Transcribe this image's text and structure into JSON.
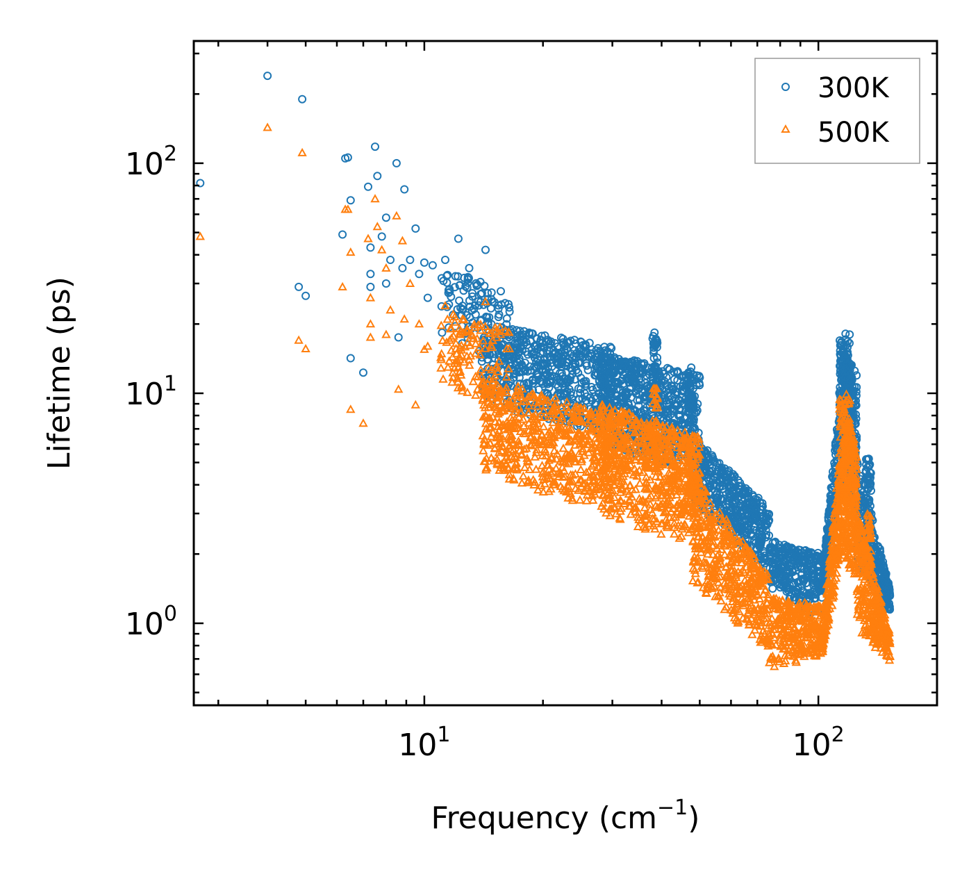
{
  "chart_data": {
    "type": "scatter",
    "title": "",
    "xlabel": "Frequency (cm",
    "xlabel_sup": "−1",
    "xlabel_end": ")",
    "ylabel": "Lifetime (ps)",
    "xscale": "log",
    "yscale": "log",
    "xlim": [
      2.6,
      200
    ],
    "ylim": [
      0.44,
      340
    ],
    "grid": false,
    "legend_position": "top-right",
    "x_ticks": [
      {
        "value": 10,
        "base": "10",
        "exp": "1"
      },
      {
        "value": 100,
        "base": "10",
        "exp": "2"
      }
    ],
    "y_ticks": [
      {
        "value": 1,
        "base": "10",
        "exp": "0"
      },
      {
        "value": 10,
        "base": "10",
        "exp": "1"
      },
      {
        "value": 100,
        "base": "10",
        "exp": "2"
      }
    ],
    "series": [
      {
        "name": "300K",
        "marker": "circle",
        "color": "#1f77b4",
        "points": [
          [
            2.7,
            82
          ],
          [
            4.0,
            240
          ],
          [
            4.8,
            29
          ],
          [
            4.9,
            190
          ],
          [
            5.0,
            26.5
          ],
          [
            6.2,
            49
          ],
          [
            6.3,
            105
          ],
          [
            6.4,
            106
          ],
          [
            6.5,
            69
          ],
          [
            6.5,
            14.2
          ],
          [
            7.0,
            12.3
          ],
          [
            7.2,
            79
          ],
          [
            7.3,
            43
          ],
          [
            7.3,
            33
          ],
          [
            7.3,
            29
          ],
          [
            7.5,
            118
          ],
          [
            7.6,
            88
          ],
          [
            7.8,
            48
          ],
          [
            8.0,
            58
          ],
          [
            8.0,
            30
          ],
          [
            8.2,
            38
          ],
          [
            8.5,
            100
          ],
          [
            8.6,
            17.5
          ],
          [
            8.8,
            35
          ],
          [
            8.9,
            77
          ],
          [
            9.2,
            38
          ],
          [
            9.5,
            52
          ],
          [
            9.7,
            33
          ],
          [
            10.0,
            37
          ],
          [
            10.2,
            26
          ],
          [
            10.5,
            36
          ],
          [
            11.3,
            38
          ],
          [
            12.2,
            47
          ],
          [
            12.5,
            24
          ],
          [
            13.0,
            35
          ],
          [
            13.5,
            22
          ],
          [
            14.3,
            42
          ],
          [
            14.5,
            19
          ],
          [
            15.0,
            16
          ]
        ],
        "dense_clusters": [
          {
            "x_range": [
              11.0,
              16.5
            ],
            "y_start": [
              36,
              18
            ],
            "y_end": [
              28,
              13
            ],
            "count": 120
          },
          {
            "x_range": [
              14.0,
              30.0
            ],
            "y_start": [
              20,
              9
            ],
            "y_end": [
              16,
              6.5
            ],
            "count": 600
          },
          {
            "x_range": [
              28.0,
              50.0
            ],
            "y_start": [
              15,
              6
            ],
            "y_end": [
              12,
              4.5
            ],
            "count": 650
          },
          {
            "x_range": [
              48.0,
              75.0
            ],
            "y_start": [
              6.5,
              3.2
            ],
            "y_end": [
              3.2,
              1.7
            ],
            "count": 450
          },
          {
            "x_range": [
              75.0,
              102.0
            ],
            "y_start": [
              2.3,
              1.4
            ],
            "y_end": [
              2.0,
              1.05
            ],
            "count": 300
          },
          {
            "x_range": [
              102.0,
              113.0
            ],
            "y_start": [
              1.5,
              1.2
            ],
            "y_end": [
              9.0,
              3.0
            ],
            "count": 200
          },
          {
            "x_range": [
              113.0,
              125.0
            ],
            "y_start": [
              18,
              4
            ],
            "y_end": [
              12,
              3
            ],
            "count": 350
          },
          {
            "x_range": [
              125.0,
              152.0
            ],
            "y_start": [
              5.5,
              1.8
            ],
            "y_end": [
              1.4,
              1.1
            ],
            "count": 300
          }
        ],
        "peaks": [
          {
            "x": 38.5,
            "y_range": [
              9,
              18.5
            ]
          },
          {
            "x": 47.5,
            "y_range": [
              7,
              13
            ]
          },
          {
            "x": 118.5,
            "y_range": [
              6,
              19
            ]
          },
          {
            "x": 134.0,
            "y_range": [
              3,
              5.2
            ]
          }
        ]
      },
      {
        "name": "500K",
        "marker": "triangle",
        "color": "#ff7f0e",
        "points": [
          [
            2.7,
            48
          ],
          [
            4.0,
            143
          ],
          [
            4.8,
            17
          ],
          [
            4.9,
            111
          ],
          [
            5.0,
            15.6
          ],
          [
            6.2,
            29
          ],
          [
            6.3,
            63
          ],
          [
            6.4,
            63
          ],
          [
            6.5,
            41
          ],
          [
            6.5,
            8.5
          ],
          [
            7.0,
            7.4
          ],
          [
            7.2,
            47
          ],
          [
            7.3,
            26
          ],
          [
            7.3,
            20
          ],
          [
            7.3,
            17.5
          ],
          [
            7.5,
            70
          ],
          [
            7.6,
            53
          ],
          [
            7.8,
            42
          ],
          [
            8.0,
            35
          ],
          [
            8.0,
            18
          ],
          [
            8.2,
            23
          ],
          [
            8.5,
            59
          ],
          [
            8.6,
            10.4
          ],
          [
            8.8,
            46
          ],
          [
            8.9,
            21
          ],
          [
            9.2,
            30
          ],
          [
            9.5,
            8.9
          ],
          [
            9.7,
            20
          ],
          [
            10.0,
            15.5
          ],
          [
            10.2,
            16
          ],
          [
            11.3,
            24
          ],
          [
            12.2,
            13
          ],
          [
            12.5,
            21
          ],
          [
            13.0,
            14
          ],
          [
            13.5,
            9.8
          ],
          [
            14.3,
            25
          ],
          [
            14.5,
            11
          ],
          [
            15.0,
            9
          ]
        ],
        "dense_clusters": [
          {
            "x_range": [
              11.0,
              16.5
            ],
            "y_start": [
              23,
              11
            ],
            "y_end": [
              19,
              8
            ],
            "count": 120
          },
          {
            "x_range": [
              14.0,
              30.0
            ],
            "y_start": [
              12,
              4.5
            ],
            "y_end": [
              8,
              3.0
            ],
            "count": 600
          },
          {
            "x_range": [
              28.0,
              50.0
            ],
            "y_start": [
              9,
              2.8
            ],
            "y_end": [
              6.5,
              2.2
            ],
            "count": 650
          },
          {
            "x_range": [
              48.0,
              75.0
            ],
            "y_start": [
              4.5,
              1.5
            ],
            "y_end": [
              1.6,
              0.75
            ],
            "count": 450
          },
          {
            "x_range": [
              75.0,
              102.0
            ],
            "y_start": [
              1.3,
              0.62
            ],
            "y_end": [
              1.2,
              0.72
            ],
            "count": 300
          },
          {
            "x_range": [
              102.0,
              113.0
            ],
            "y_start": [
              0.9,
              0.72
            ],
            "y_end": [
              5.0,
              1.6
            ],
            "count": 200
          },
          {
            "x_range": [
              113.0,
              125.0
            ],
            "y_start": [
              10,
              2.0
            ],
            "y_end": [
              6,
              1.5
            ],
            "count": 350
          },
          {
            "x_range": [
              125.0,
              152.0
            ],
            "y_start": [
              3.2,
              0.95
            ],
            "y_end": [
              0.9,
              0.66
            ],
            "count": 300
          }
        ],
        "peaks": [
          {
            "x": 38.5,
            "y_range": [
              4.5,
              10.5
            ]
          },
          {
            "x": 47.5,
            "y_range": [
              3.5,
              6.5
            ]
          },
          {
            "x": 118.5,
            "y_range": [
              3,
              10
            ]
          },
          {
            "x": 134.0,
            "y_range": [
              1.6,
              3.0
            ]
          }
        ]
      }
    ]
  }
}
